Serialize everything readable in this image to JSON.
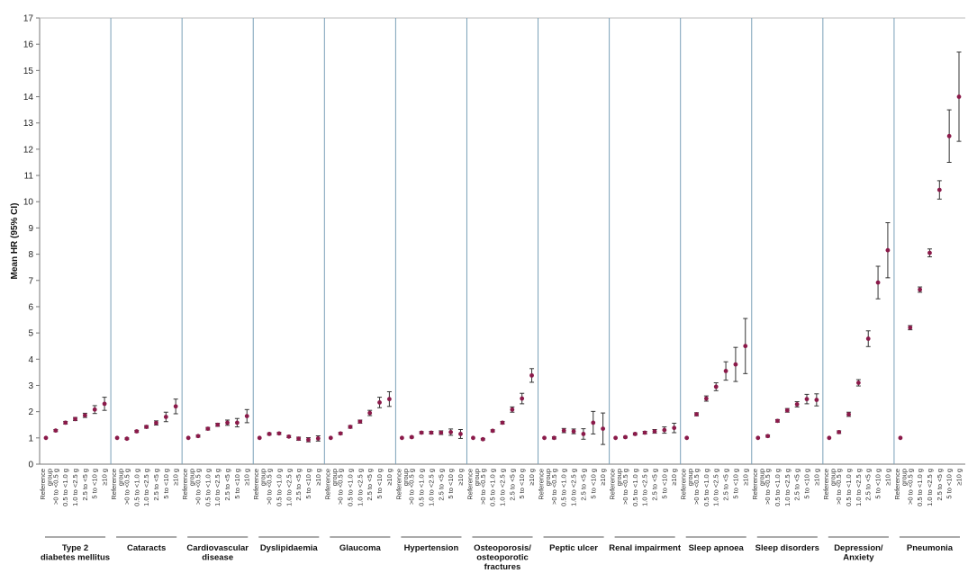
{
  "chart_data": {
    "type": "scatter",
    "ylabel": "Mean HR (95% CI)",
    "ylim": [
      0,
      17
    ],
    "yticks": [
      0,
      1,
      2,
      3,
      4,
      5,
      6,
      7,
      8,
      9,
      10,
      11,
      12,
      13,
      14,
      15,
      16,
      17
    ],
    "grid": false,
    "marker_color": "#8b1a4a",
    "panel_divider_color": "#7aa0b8",
    "categories": [
      "Reference group",
      ">0 to <0.5 g",
      "0.5 to <1.0 g",
      "1.0 to <2.5 g",
      "2.5 to <5 g",
      "5 to <10 g",
      "≥10 g"
    ],
    "panels": [
      {
        "name": "Type 2 diabetes mellitus",
        "name_lines": [
          "Type 2",
          "diabetes mellitus"
        ],
        "points": [
          {
            "y": 1.0,
            "lo": 1.0,
            "hi": 1.0
          },
          {
            "y": 1.28,
            "lo": 1.24,
            "hi": 1.32
          },
          {
            "y": 1.58,
            "lo": 1.53,
            "hi": 1.63
          },
          {
            "y": 1.72,
            "lo": 1.66,
            "hi": 1.78
          },
          {
            "y": 1.86,
            "lo": 1.78,
            "hi": 1.94
          },
          {
            "y": 2.08,
            "lo": 1.93,
            "hi": 2.23
          },
          {
            "y": 2.3,
            "lo": 2.05,
            "hi": 2.55
          }
        ]
      },
      {
        "name": "Cataracts",
        "name_lines": [
          "Cataracts"
        ],
        "points": [
          {
            "y": 1.0,
            "lo": 1.0,
            "hi": 1.0
          },
          {
            "y": 0.97,
            "lo": 0.94,
            "hi": 1.0
          },
          {
            "y": 1.25,
            "lo": 1.21,
            "hi": 1.29
          },
          {
            "y": 1.42,
            "lo": 1.37,
            "hi": 1.47
          },
          {
            "y": 1.57,
            "lo": 1.49,
            "hi": 1.65
          },
          {
            "y": 1.8,
            "lo": 1.62,
            "hi": 1.98
          },
          {
            "y": 2.2,
            "lo": 1.92,
            "hi": 2.48
          }
        ]
      },
      {
        "name": "Cardiovascular disease",
        "name_lines": [
          "Cardiovascular",
          "disease"
        ],
        "points": [
          {
            "y": 1.0,
            "lo": 1.0,
            "hi": 1.0
          },
          {
            "y": 1.07,
            "lo": 1.03,
            "hi": 1.11
          },
          {
            "y": 1.35,
            "lo": 1.3,
            "hi": 1.4
          },
          {
            "y": 1.5,
            "lo": 1.44,
            "hi": 1.56
          },
          {
            "y": 1.58,
            "lo": 1.48,
            "hi": 1.68
          },
          {
            "y": 1.58,
            "lo": 1.42,
            "hi": 1.74
          },
          {
            "y": 1.83,
            "lo": 1.58,
            "hi": 2.08
          }
        ]
      },
      {
        "name": "Dyslipidaemia",
        "name_lines": [
          "Dyslipidaemia"
        ],
        "points": [
          {
            "y": 1.0,
            "lo": 1.0,
            "hi": 1.0
          },
          {
            "y": 1.15,
            "lo": 1.11,
            "hi": 1.19
          },
          {
            "y": 1.17,
            "lo": 1.13,
            "hi": 1.21
          },
          {
            "y": 1.05,
            "lo": 1.01,
            "hi": 1.09
          },
          {
            "y": 0.97,
            "lo": 0.91,
            "hi": 1.03
          },
          {
            "y": 0.93,
            "lo": 0.85,
            "hi": 1.01
          },
          {
            "y": 0.98,
            "lo": 0.88,
            "hi": 1.08
          }
        ]
      },
      {
        "name": "Glaucoma",
        "name_lines": [
          "Glaucoma"
        ],
        "points": [
          {
            "y": 1.0,
            "lo": 1.0,
            "hi": 1.0
          },
          {
            "y": 1.17,
            "lo": 1.13,
            "hi": 1.21
          },
          {
            "y": 1.42,
            "lo": 1.37,
            "hi": 1.47
          },
          {
            "y": 1.62,
            "lo": 1.56,
            "hi": 1.68
          },
          {
            "y": 1.95,
            "lo": 1.85,
            "hi": 2.05
          },
          {
            "y": 2.35,
            "lo": 2.15,
            "hi": 2.55
          },
          {
            "y": 2.48,
            "lo": 2.2,
            "hi": 2.76
          }
        ]
      },
      {
        "name": "Hypertension",
        "name_lines": [
          "Hypertension"
        ],
        "points": [
          {
            "y": 1.0,
            "lo": 1.0,
            "hi": 1.0
          },
          {
            "y": 1.03,
            "lo": 1.0,
            "hi": 1.06
          },
          {
            "y": 1.2,
            "lo": 1.16,
            "hi": 1.24
          },
          {
            "y": 1.2,
            "lo": 1.15,
            "hi": 1.25
          },
          {
            "y": 1.2,
            "lo": 1.13,
            "hi": 1.27
          },
          {
            "y": 1.22,
            "lo": 1.1,
            "hi": 1.34
          },
          {
            "y": 1.15,
            "lo": 0.98,
            "hi": 1.32
          }
        ]
      },
      {
        "name": "Osteoporosis/ osteoporotic fractures",
        "name_lines": [
          "Osteoporosis/",
          "osteoporotic",
          "fractures"
        ],
        "points": [
          {
            "y": 1.0,
            "lo": 1.0,
            "hi": 1.0
          },
          {
            "y": 0.95,
            "lo": 0.92,
            "hi": 0.98
          },
          {
            "y": 1.27,
            "lo": 1.23,
            "hi": 1.31
          },
          {
            "y": 1.58,
            "lo": 1.53,
            "hi": 1.63
          },
          {
            "y": 2.08,
            "lo": 1.98,
            "hi": 2.18
          },
          {
            "y": 2.5,
            "lo": 2.3,
            "hi": 2.7
          },
          {
            "y": 3.38,
            "lo": 3.12,
            "hi": 3.64
          }
        ]
      },
      {
        "name": "Peptic ulcer",
        "name_lines": [
          "Peptic ulcer"
        ],
        "points": [
          {
            "y": 1.0,
            "lo": 1.0,
            "hi": 1.0
          },
          {
            "y": 1.0,
            "lo": 0.96,
            "hi": 1.04
          },
          {
            "y": 1.28,
            "lo": 1.2,
            "hi": 1.36
          },
          {
            "y": 1.25,
            "lo": 1.16,
            "hi": 1.34
          },
          {
            "y": 1.15,
            "lo": 0.95,
            "hi": 1.35
          },
          {
            "y": 1.58,
            "lo": 1.15,
            "hi": 2.01
          },
          {
            "y": 1.35,
            "lo": 0.75,
            "hi": 1.95
          }
        ]
      },
      {
        "name": "Renal impairment",
        "name_lines": [
          "Renal impairment"
        ],
        "points": [
          {
            "y": 1.0,
            "lo": 1.0,
            "hi": 1.0
          },
          {
            "y": 1.03,
            "lo": 1.0,
            "hi": 1.06
          },
          {
            "y": 1.15,
            "lo": 1.11,
            "hi": 1.19
          },
          {
            "y": 1.2,
            "lo": 1.15,
            "hi": 1.25
          },
          {
            "y": 1.25,
            "lo": 1.18,
            "hi": 1.32
          },
          {
            "y": 1.3,
            "lo": 1.18,
            "hi": 1.42
          },
          {
            "y": 1.38,
            "lo": 1.2,
            "hi": 1.56
          }
        ]
      },
      {
        "name": "Sleep apnoea",
        "name_lines": [
          "Sleep apnoea"
        ],
        "points": [
          {
            "y": 1.0,
            "lo": 1.0,
            "hi": 1.0
          },
          {
            "y": 1.9,
            "lo": 1.84,
            "hi": 1.96
          },
          {
            "y": 2.5,
            "lo": 2.4,
            "hi": 2.6
          },
          {
            "y": 2.95,
            "lo": 2.8,
            "hi": 3.1
          },
          {
            "y": 3.55,
            "lo": 3.2,
            "hi": 3.9
          },
          {
            "y": 3.8,
            "lo": 3.15,
            "hi": 4.45
          },
          {
            "y": 4.5,
            "lo": 3.45,
            "hi": 5.55
          }
        ]
      },
      {
        "name": "Sleep disorders",
        "name_lines": [
          "Sleep disorders"
        ],
        "points": [
          {
            "y": 1.0,
            "lo": 1.0,
            "hi": 1.0
          },
          {
            "y": 1.07,
            "lo": 1.03,
            "hi": 1.11
          },
          {
            "y": 1.65,
            "lo": 1.6,
            "hi": 1.7
          },
          {
            "y": 2.05,
            "lo": 1.98,
            "hi": 2.12
          },
          {
            "y": 2.28,
            "lo": 2.18,
            "hi": 2.38
          },
          {
            "y": 2.48,
            "lo": 2.3,
            "hi": 2.66
          },
          {
            "y": 2.45,
            "lo": 2.22,
            "hi": 2.68
          }
        ]
      },
      {
        "name": "Depression/ Anxiety",
        "name_lines": [
          "Depression/",
          "Anxiety"
        ],
        "points": [
          {
            "y": 1.0,
            "lo": 1.0,
            "hi": 1.0
          },
          {
            "y": 1.22,
            "lo": 1.17,
            "hi": 1.27
          },
          {
            "y": 1.9,
            "lo": 1.82,
            "hi": 1.98
          },
          {
            "y": 3.1,
            "lo": 2.98,
            "hi": 3.22
          },
          {
            "y": 4.78,
            "lo": 4.48,
            "hi": 5.08
          },
          {
            "y": 6.92,
            "lo": 6.3,
            "hi": 7.54
          },
          {
            "y": 8.15,
            "lo": 7.1,
            "hi": 9.2
          }
        ]
      },
      {
        "name": "Pneumonia",
        "name_lines": [
          "Pneumonia"
        ],
        "points": [
          {
            "y": 1.0,
            "lo": 1.0,
            "hi": 1.0
          },
          {
            "y": 5.2,
            "lo": 5.12,
            "hi": 5.28
          },
          {
            "y": 6.65,
            "lo": 6.55,
            "hi": 6.75
          },
          {
            "y": 8.05,
            "lo": 7.9,
            "hi": 8.2
          },
          {
            "y": 10.45,
            "lo": 10.1,
            "hi": 10.8
          },
          {
            "y": 12.5,
            "lo": 11.5,
            "hi": 13.5
          },
          {
            "y": 14.0,
            "lo": 12.3,
            "hi": 15.7
          }
        ]
      }
    ]
  }
}
